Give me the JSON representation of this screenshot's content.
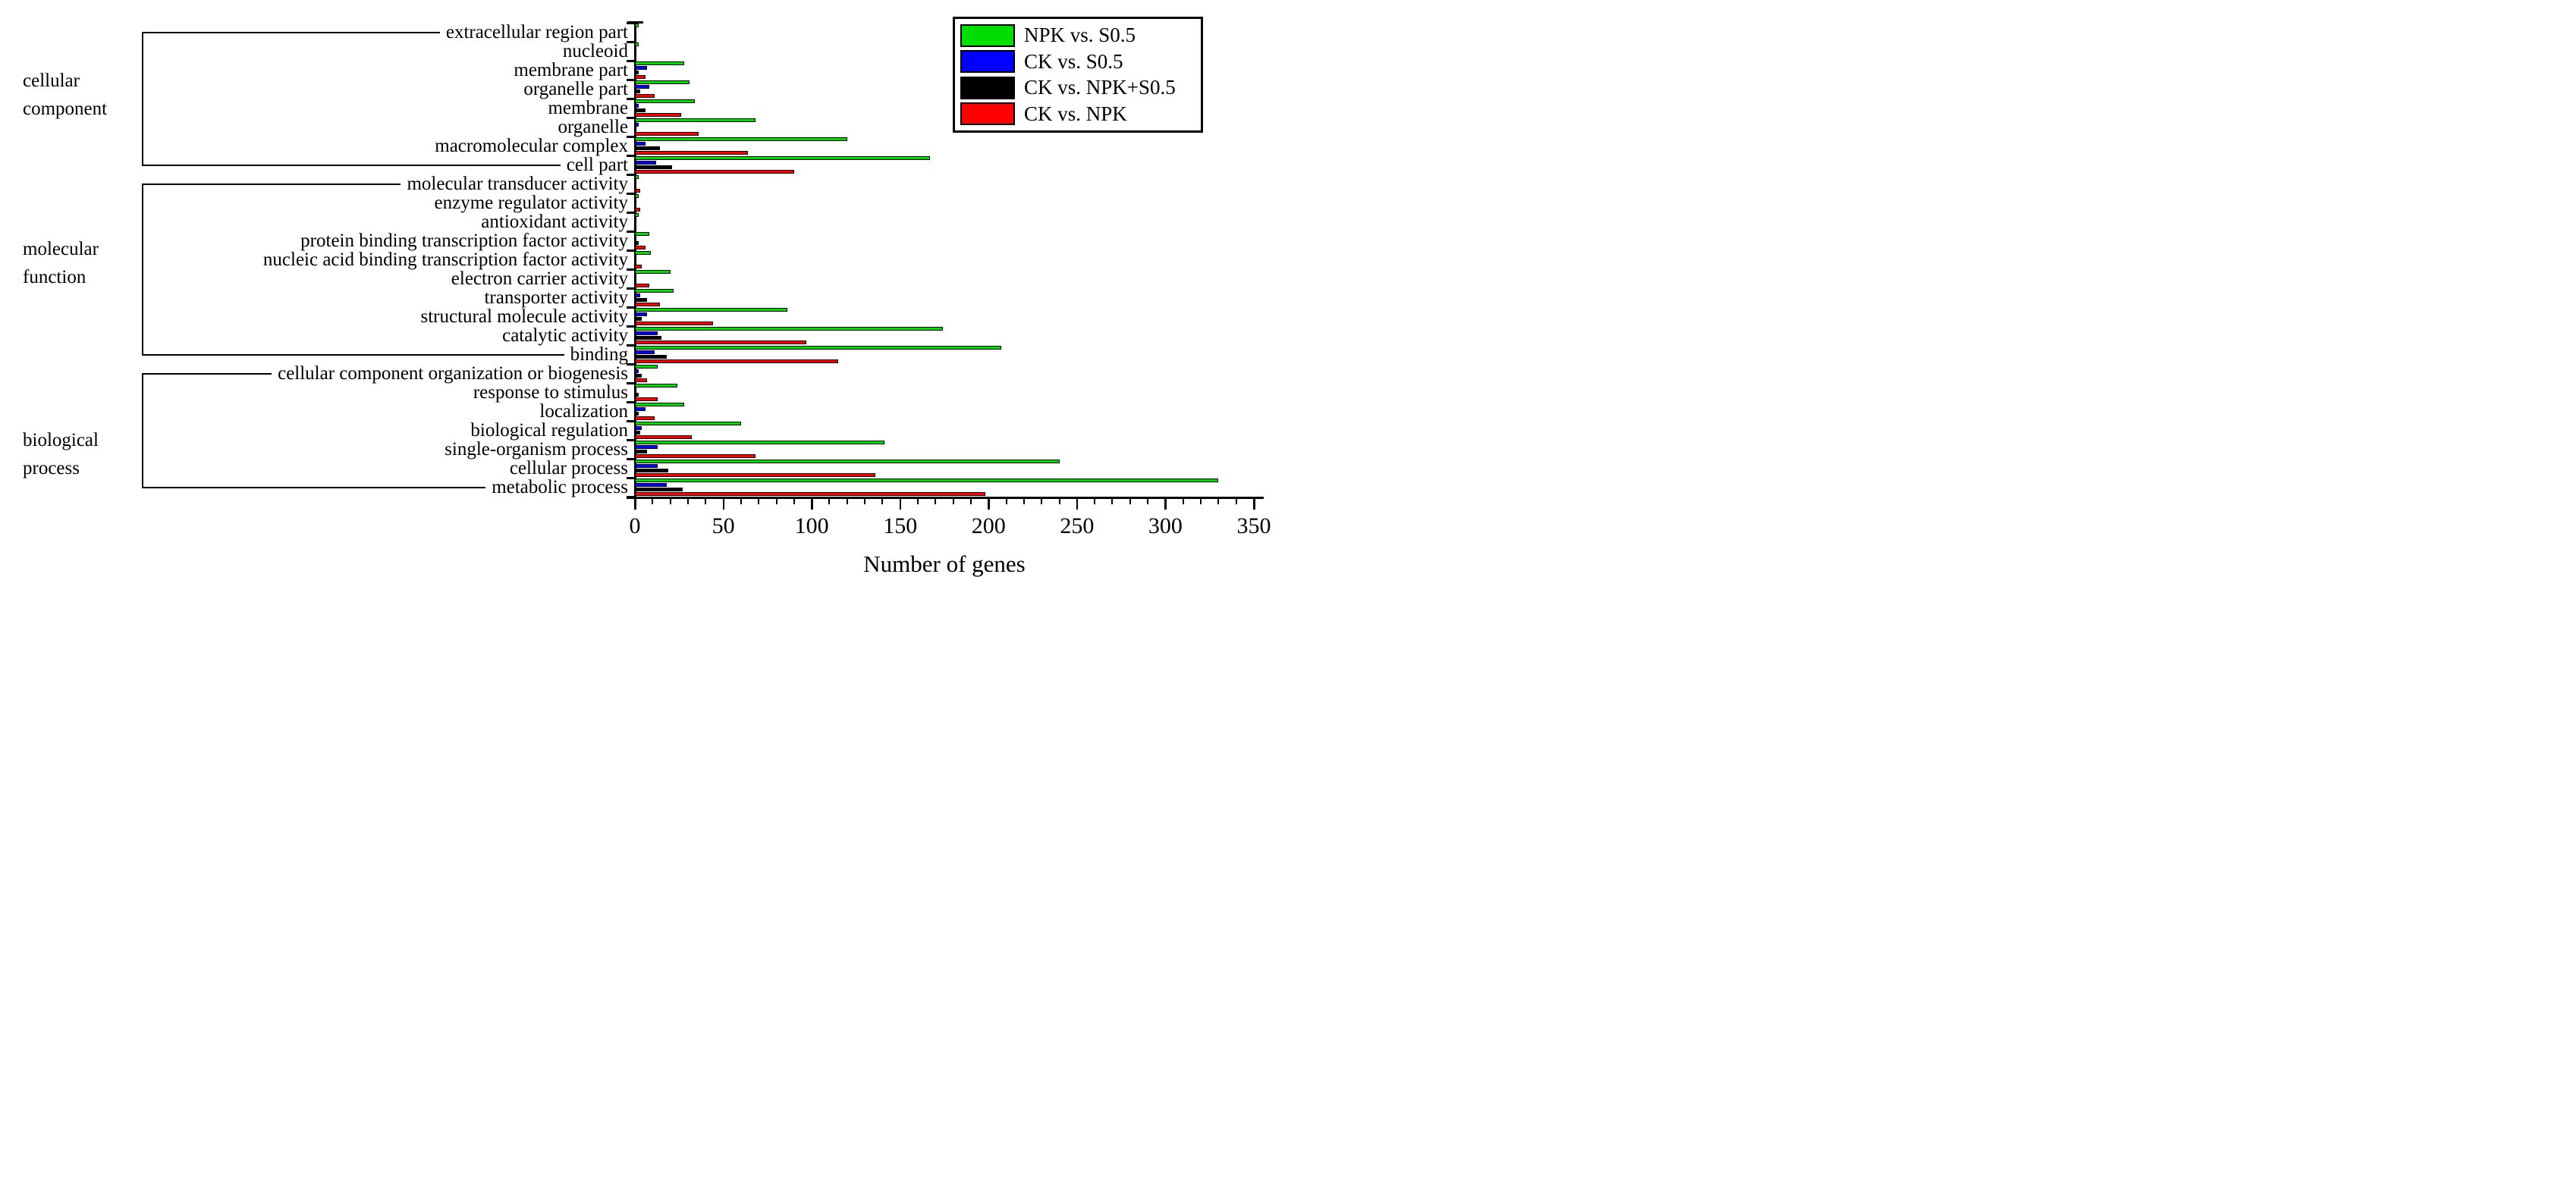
{
  "chart_data": {
    "type": "bar",
    "orientation": "horizontal",
    "title": "",
    "xlabel": "Number of genes",
    "ylabel": "",
    "xlim": [
      0,
      350
    ],
    "x_major_ticks": [
      0,
      50,
      100,
      150,
      200,
      250,
      300,
      350
    ],
    "x_minor_step": 10,
    "grid": false,
    "legend_position": "top-right",
    "groups": [
      {
        "name": "cellular component",
        "lines": [
          "cellular",
          "component"
        ],
        "first_row": 0,
        "last_row": 7
      },
      {
        "name": "molecular function",
        "lines": [
          "molecular",
          "function"
        ],
        "first_row": 8,
        "last_row": 17
      },
      {
        "name": "biological process",
        "lines": [
          "biological",
          "process"
        ],
        "first_row": 18,
        "last_row": 24
      }
    ],
    "categories": [
      "extracellular region part",
      "nucleoid",
      "membrane part",
      "organelle part",
      "membrane",
      "organelle",
      "macromolecular complex",
      "cell part",
      "molecular transducer activity",
      "enzyme regulator activity",
      "antioxidant activity",
      "protein binding transcription factor activity",
      "nucleic acid binding transcription factor activity",
      "electron carrier activity",
      "transporter activity",
      "structural molecule activity",
      "catalytic activity",
      "binding",
      "cellular component organization or biogenesis",
      "response to stimulus",
      "localization",
      "biological regulation",
      "single-organism process",
      "cellular process",
      "metabolic process"
    ],
    "series": [
      {
        "name": "NPK vs. S0.5",
        "color": "#00dd00",
        "values": [
          2,
          2,
          28,
          31,
          34,
          68,
          120,
          167,
          2,
          2,
          2,
          8,
          9,
          20,
          22,
          86,
          174,
          207,
          13,
          24,
          28,
          60,
          141,
          240,
          330
        ]
      },
      {
        "name": "CK vs. S0.5",
        "color": "#0000ff",
        "values": [
          1,
          1,
          7,
          8,
          2,
          2,
          6,
          12,
          1,
          1,
          1,
          1,
          1,
          1,
          3,
          7,
          13,
          11,
          2,
          1,
          6,
          4,
          13,
          13,
          18
        ]
      },
      {
        "name": "CK vs. NPK+S0.5",
        "color": "#000000",
        "values": [
          1,
          1,
          2,
          3,
          6,
          1,
          14,
          21,
          1,
          1,
          1,
          2,
          1,
          1,
          7,
          4,
          15,
          18,
          4,
          2,
          2,
          3,
          7,
          19,
          27
        ]
      },
      {
        "name": "CK vs. NPK",
        "color": "#ff0000",
        "values": [
          1,
          1,
          6,
          11,
          26,
          36,
          64,
          90,
          3,
          3,
          1,
          6,
          4,
          8,
          14,
          44,
          97,
          115,
          7,
          13,
          11,
          32,
          68,
          136,
          198
        ]
      }
    ]
  }
}
